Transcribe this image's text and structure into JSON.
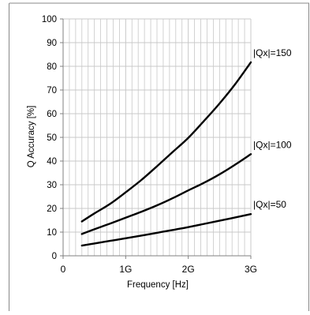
{
  "chart_data": {
    "type": "line",
    "title": "",
    "xlabel": "Frequency [Hz]",
    "ylabel": "Q Accuracy [%]",
    "xlim": [
      0,
      3
    ],
    "ylim": [
      0,
      100
    ],
    "x_tick_labels": [
      "0",
      "1G",
      "2G",
      "3G"
    ],
    "x_tick_values": [
      0,
      1,
      2,
      3
    ],
    "x_unit": "GHz",
    "y_ticks": [
      0,
      10,
      20,
      30,
      40,
      50,
      60,
      70,
      80,
      90,
      100
    ],
    "x_minor_step": 0.1,
    "grid": true,
    "legend": "none",
    "series": [
      {
        "name": "|Qx|=150",
        "x": [
          0.3,
          0.5,
          0.75,
          1.0,
          1.25,
          1.5,
          1.75,
          2.0,
          2.25,
          2.5,
          2.75,
          3.0
        ],
        "y": [
          14.5,
          17.9,
          21.9,
          26.8,
          32.0,
          37.8,
          43.8,
          49.8,
          56.9,
          64.3,
          72.5,
          81.7
        ]
      },
      {
        "name": "|Qx|=100",
        "x": [
          0.3,
          0.5,
          0.75,
          1.0,
          1.25,
          1.5,
          1.75,
          2.0,
          2.25,
          2.5,
          2.75,
          3.0
        ],
        "y": [
          9.2,
          11.2,
          13.6,
          16.1,
          18.6,
          21.3,
          24.3,
          27.6,
          30.8,
          34.4,
          38.5,
          42.9
        ]
      },
      {
        "name": "|Qx|=50",
        "x": [
          0.3,
          0.5,
          0.75,
          1.0,
          1.5,
          2.0,
          2.5,
          3.0
        ],
        "y": [
          4.3,
          5.2,
          6.3,
          7.4,
          9.7,
          12.1,
          14.8,
          17.6
        ]
      }
    ],
    "colors": {
      "line": "#000000",
      "grid": "#c8c8c8",
      "axis": "#808080",
      "frame": "#888888"
    }
  }
}
